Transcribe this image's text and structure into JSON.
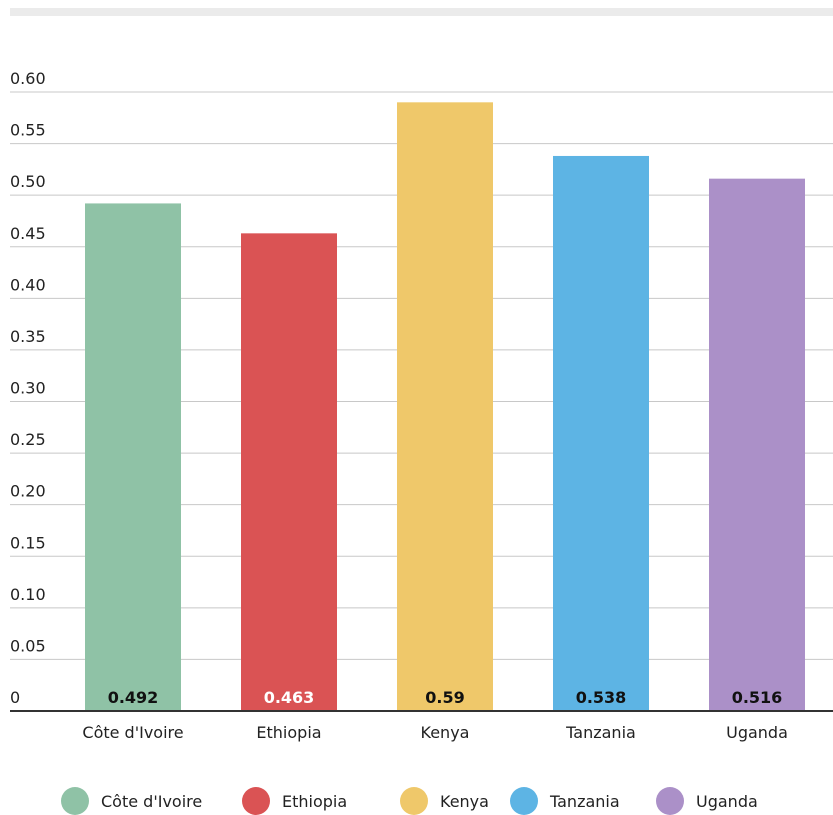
{
  "chart_data": {
    "type": "bar",
    "categories": [
      "Côte d'Ivoire",
      "Ethiopia",
      "Kenya",
      "Tanzania",
      "Uganda"
    ],
    "values": [
      0.492,
      0.463,
      0.59,
      0.538,
      0.516
    ],
    "value_labels": [
      "0.492",
      "0.463",
      "0.59",
      "0.538",
      "0.516"
    ],
    "colors": [
      "#8fc2a6",
      "#da5354",
      "#efc86a",
      "#5db4e4",
      "#ab90c8"
    ],
    "label_colors": [
      "#111111",
      "#ffffff",
      "#111111",
      "#111111",
      "#111111"
    ],
    "ylim": [
      0,
      0.6
    ],
    "yticks": [
      "0",
      "0.05",
      "0.10",
      "0.15",
      "0.20",
      "0.25",
      "0.30",
      "0.35",
      "0.40",
      "0.45",
      "0.50",
      "0.55",
      "0.60"
    ],
    "grid": true,
    "legend": {
      "placement": "bottom",
      "entries": [
        "Côte d'Ivoire",
        "Ethiopia",
        "Kenya",
        "Tanzania",
        "Uganda"
      ]
    }
  }
}
